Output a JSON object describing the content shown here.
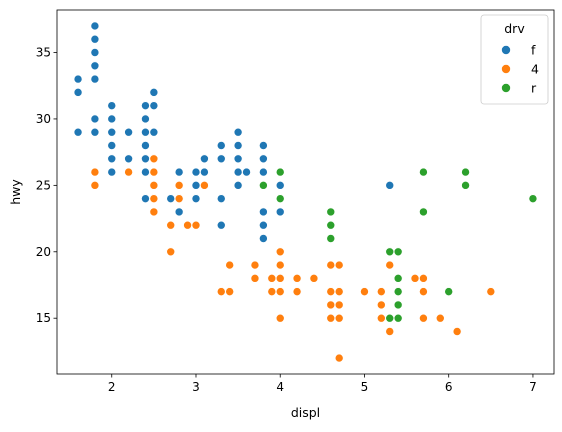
{
  "chart_data": {
    "type": "scatter",
    "xlabel": "displ",
    "ylabel": "hwy",
    "xlim": [
      1.35,
      7.25
    ],
    "ylim": [
      10.8,
      38.2
    ],
    "xticks": [
      2,
      3,
      4,
      5,
      6,
      7
    ],
    "yticks": [
      15,
      20,
      25,
      30,
      35
    ],
    "grid": false,
    "legend": {
      "title": "drv",
      "placement": "top-right"
    },
    "series": [
      {
        "name": "f",
        "color": "#1f77b4",
        "points": [
          [
            1.6,
            33
          ],
          [
            1.6,
            32
          ],
          [
            1.6,
            29
          ],
          [
            1.8,
            37
          ],
          [
            1.8,
            36
          ],
          [
            1.8,
            35
          ],
          [
            1.8,
            34
          ],
          [
            1.8,
            33
          ],
          [
            1.8,
            30
          ],
          [
            1.8,
            29
          ],
          [
            2.0,
            31
          ],
          [
            2.0,
            30
          ],
          [
            2.0,
            29
          ],
          [
            2.0,
            28
          ],
          [
            2.0,
            27
          ],
          [
            2.0,
            26
          ],
          [
            2.2,
            29
          ],
          [
            2.2,
            27
          ],
          [
            2.2,
            26
          ],
          [
            2.4,
            31
          ],
          [
            2.4,
            30
          ],
          [
            2.4,
            29
          ],
          [
            2.4,
            28
          ],
          [
            2.4,
            27
          ],
          [
            2.4,
            26
          ],
          [
            2.4,
            24
          ],
          [
            2.5,
            32
          ],
          [
            2.5,
            31
          ],
          [
            2.5,
            29
          ],
          [
            2.5,
            27
          ],
          [
            2.5,
            26
          ],
          [
            2.5,
            25
          ],
          [
            2.5,
            24
          ],
          [
            2.7,
            24
          ],
          [
            2.8,
            26
          ],
          [
            2.8,
            24
          ],
          [
            2.8,
            23
          ],
          [
            3.0,
            26
          ],
          [
            3.0,
            25
          ],
          [
            3.0,
            24
          ],
          [
            3.1,
            27
          ],
          [
            3.1,
            26
          ],
          [
            3.3,
            28
          ],
          [
            3.3,
            27
          ],
          [
            3.3,
            24
          ],
          [
            3.3,
            22
          ],
          [
            3.5,
            29
          ],
          [
            3.5,
            28
          ],
          [
            3.5,
            27
          ],
          [
            3.5,
            26
          ],
          [
            3.5,
            25
          ],
          [
            3.6,
            26
          ],
          [
            3.8,
            28
          ],
          [
            3.8,
            27
          ],
          [
            3.8,
            26
          ],
          [
            3.8,
            25
          ],
          [
            3.8,
            23
          ],
          [
            3.8,
            22
          ],
          [
            3.8,
            21
          ],
          [
            4.0,
            25
          ],
          [
            4.0,
            23
          ],
          [
            5.3,
            25
          ]
        ]
      },
      {
        "name": "4",
        "color": "#ff7f0e",
        "points": [
          [
            1.8,
            26
          ],
          [
            1.8,
            25
          ],
          [
            2.2,
            26
          ],
          [
            2.5,
            27
          ],
          [
            2.5,
            26
          ],
          [
            2.5,
            25
          ],
          [
            2.5,
            24
          ],
          [
            2.5,
            23
          ],
          [
            2.7,
            22
          ],
          [
            2.7,
            20
          ],
          [
            2.8,
            25
          ],
          [
            2.8,
            24
          ],
          [
            2.9,
            22
          ],
          [
            3.0,
            22
          ],
          [
            3.1,
            25
          ],
          [
            3.3,
            17
          ],
          [
            3.4,
            19
          ],
          [
            3.4,
            17
          ],
          [
            3.7,
            19
          ],
          [
            3.7,
            18
          ],
          [
            3.8,
            25
          ],
          [
            3.9,
            18
          ],
          [
            3.9,
            17
          ],
          [
            4.0,
            20
          ],
          [
            4.0,
            19
          ],
          [
            4.0,
            18
          ],
          [
            4.0,
            17
          ],
          [
            4.0,
            15
          ],
          [
            4.2,
            18
          ],
          [
            4.2,
            17
          ],
          [
            4.4,
            18
          ],
          [
            4.6,
            19
          ],
          [
            4.6,
            17
          ],
          [
            4.6,
            16
          ],
          [
            4.6,
            15
          ],
          [
            4.7,
            19
          ],
          [
            4.7,
            17
          ],
          [
            4.7,
            16
          ],
          [
            4.7,
            15
          ],
          [
            4.7,
            12
          ],
          [
            5.0,
            17
          ],
          [
            5.2,
            17
          ],
          [
            5.2,
            16
          ],
          [
            5.2,
            15
          ],
          [
            5.3,
            19
          ],
          [
            5.3,
            14
          ],
          [
            5.4,
            15
          ],
          [
            5.6,
            18
          ],
          [
            5.7,
            18
          ],
          [
            5.7,
            17
          ],
          [
            5.7,
            15
          ],
          [
            5.9,
            15
          ],
          [
            6.1,
            14
          ],
          [
            6.5,
            17
          ]
        ]
      },
      {
        "name": "r",
        "color": "#2ca02c",
        "points": [
          [
            3.8,
            25
          ],
          [
            4.0,
            26
          ],
          [
            4.0,
            24
          ],
          [
            4.6,
            23
          ],
          [
            4.6,
            22
          ],
          [
            4.6,
            21
          ],
          [
            5.3,
            20
          ],
          [
            5.3,
            15
          ],
          [
            5.4,
            20
          ],
          [
            5.4,
            18
          ],
          [
            5.4,
            17
          ],
          [
            5.4,
            16
          ],
          [
            5.4,
            15
          ],
          [
            5.7,
            26
          ],
          [
            5.7,
            23
          ],
          [
            6.0,
            17
          ],
          [
            6.2,
            26
          ],
          [
            6.2,
            25
          ],
          [
            7.0,
            24
          ]
        ]
      }
    ]
  }
}
